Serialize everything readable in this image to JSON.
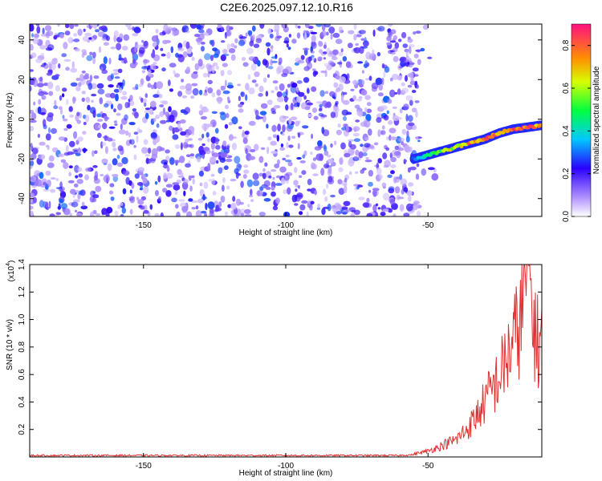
{
  "title": "C2E6.2025.097.12.10.R16",
  "chart_data": [
    {
      "type": "heatmap",
      "xlabel": "Height of straight line (km)",
      "ylabel": "Frequency (Hz)",
      "xlim": [
        -190,
        -10
      ],
      "ylim": [
        -49,
        48
      ],
      "xticks": [
        "-150",
        "-100",
        "-50"
      ],
      "yticks": [
        "40",
        "20",
        "0",
        "-20",
        "-40"
      ],
      "colorbar": {
        "label": "Normalized spectral amplitude",
        "range": [
          0.0,
          0.9
        ],
        "ticks": [
          "0.0",
          "0.2",
          "0.4",
          "0.6",
          "0.8"
        ]
      },
      "noise_region": {
        "x_range": [
          -190,
          -53
        ],
        "y_range": [
          -49,
          48
        ],
        "amplitude_range": [
          0.05,
          0.3
        ]
      },
      "signal_track": [
        {
          "x": -55,
          "y": -20,
          "amplitude": 0.3
        },
        {
          "x": -50,
          "y": -18,
          "amplitude": 0.5
        },
        {
          "x": -45,
          "y": -16,
          "amplitude": 0.6
        },
        {
          "x": -40,
          "y": -14,
          "amplitude": 0.75
        },
        {
          "x": -35,
          "y": -12,
          "amplitude": 0.8
        },
        {
          "x": -30,
          "y": -10,
          "amplitude": 0.85
        },
        {
          "x": -25,
          "y": -7,
          "amplitude": 0.8
        },
        {
          "x": -20,
          "y": -5,
          "amplitude": 0.85
        },
        {
          "x": -15,
          "y": -4,
          "amplitude": 0.9
        },
        {
          "x": -10,
          "y": -3,
          "amplitude": 0.8
        }
      ]
    },
    {
      "type": "line",
      "xlabel": "Height of straight line (km)",
      "ylabel": "SNR (10 * v/v)",
      "y_multiplier": "(x10",
      "y_multiplier_exp": "4",
      "xlim": [
        -190,
        -10
      ],
      "ylim": [
        0,
        1.4
      ],
      "xticks": [
        "-150",
        "-100",
        "-50"
      ],
      "yticks": [
        "1.4",
        "1.2",
        "1.0",
        "0.8",
        "0.6",
        "0.4",
        "0.2"
      ],
      "color": "#e03030",
      "series": [
        {
          "x": [
            -190,
            -150,
            -100,
            -60,
            -55,
            -50,
            -45,
            -40,
            -37,
            -34,
            -31,
            -28,
            -25,
            -22,
            -19,
            -17,
            -15,
            -13,
            -11,
            -10
          ],
          "values": [
            0.01,
            0.01,
            0.01,
            0.01,
            0.02,
            0.04,
            0.08,
            0.12,
            0.18,
            0.25,
            0.35,
            0.45,
            0.55,
            0.7,
            0.85,
            1.0,
            1.38,
            0.95,
            0.75,
            0.95
          ]
        }
      ]
    }
  ]
}
